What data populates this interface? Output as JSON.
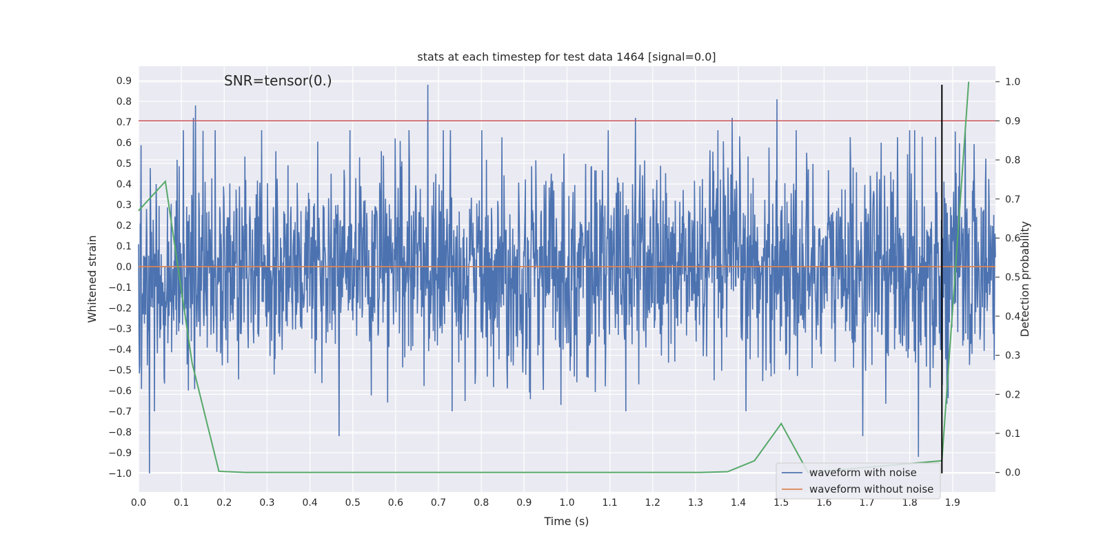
{
  "chart_data": {
    "type": "line",
    "title": "stats at each timestep for test data 1464 [signal=0.0]",
    "annotation": "SNR=tensor(0.)",
    "xlabel": "Time (s)",
    "ylabel": "Whitened strain",
    "y2label": "Detection probability",
    "xlim": [
      0.0,
      2.0
    ],
    "ylim": [
      -1.09,
      0.97
    ],
    "y2lim": [
      -0.05,
      1.04
    ],
    "xticks": [
      "0.0",
      "0.1",
      "0.2",
      "0.3",
      "0.4",
      "0.5",
      "0.6",
      "0.7",
      "0.8",
      "0.9",
      "1.0",
      "1.1",
      "1.2",
      "1.3",
      "1.4",
      "1.5",
      "1.6",
      "1.7",
      "1.8",
      "1.9"
    ],
    "yticks": [
      "0.9",
      "0.8",
      "0.7",
      "0.6",
      "0.5",
      "0.4",
      "0.3",
      "0.2",
      "0.1",
      "0.0",
      "−0.1",
      "−0.2",
      "−0.3",
      "−0.4",
      "−0.5",
      "−0.6",
      "−0.7",
      "−0.8",
      "−0.9",
      "−1.0"
    ],
    "y2ticks": [
      "1.0",
      "0.9",
      "0.8",
      "0.7",
      "0.6",
      "0.5",
      "0.4",
      "0.3",
      "0.2",
      "0.1",
      "0.0"
    ],
    "grid": true,
    "legend_position": "lower-right",
    "colors": {
      "noise": "#4c72b0",
      "clean": "#dd8452",
      "probability": "#55a868",
      "threshold": "#c44e52",
      "marker": "#000000",
      "background": "#eaeaf2",
      "grid": "#ffffff"
    },
    "series": [
      {
        "name": "waveform with noise",
        "axis": "left",
        "noise_profile": {
          "points": 2048,
          "std": 0.25,
          "peaks": [
            {
              "x": 0.025,
              "y": -1.0
            },
            {
              "x": 0.128,
              "y": 0.72
            },
            {
              "x": 0.133,
              "y": 0.78
            },
            {
              "x": 0.468,
              "y": -0.82
            },
            {
              "x": 0.675,
              "y": 0.88
            },
            {
              "x": 1.16,
              "y": 0.72
            },
            {
              "x": 1.49,
              "y": 0.81
            },
            {
              "x": 1.385,
              "y": 0.72
            },
            {
              "x": 1.69,
              "y": -0.82
            },
            {
              "x": 1.82,
              "y": -0.92
            },
            {
              "x": 1.93,
              "y": 0.68
            }
          ]
        }
      },
      {
        "name": "waveform without noise",
        "axis": "left",
        "x": [
          0.0,
          2.0
        ],
        "y": [
          0.0,
          0.0
        ]
      },
      {
        "name": "",
        "axis": "right",
        "x": [
          0.0,
          0.0625,
          0.125,
          0.1875,
          0.25,
          0.3125,
          1.3125,
          1.375,
          1.4375,
          1.5,
          1.5625,
          1.875,
          1.9375
        ],
        "y": [
          0.67,
          0.745,
          0.28,
          0.003,
          0.0,
          0.0,
          0.0,
          0.002,
          0.03,
          0.125,
          0.0,
          0.03,
          1.0
        ]
      }
    ],
    "threshold_line": {
      "axis": "right",
      "y": 0.9
    },
    "marker_line": {
      "x": 1.875,
      "y_from": -1.0,
      "y_to": 0.88
    }
  }
}
